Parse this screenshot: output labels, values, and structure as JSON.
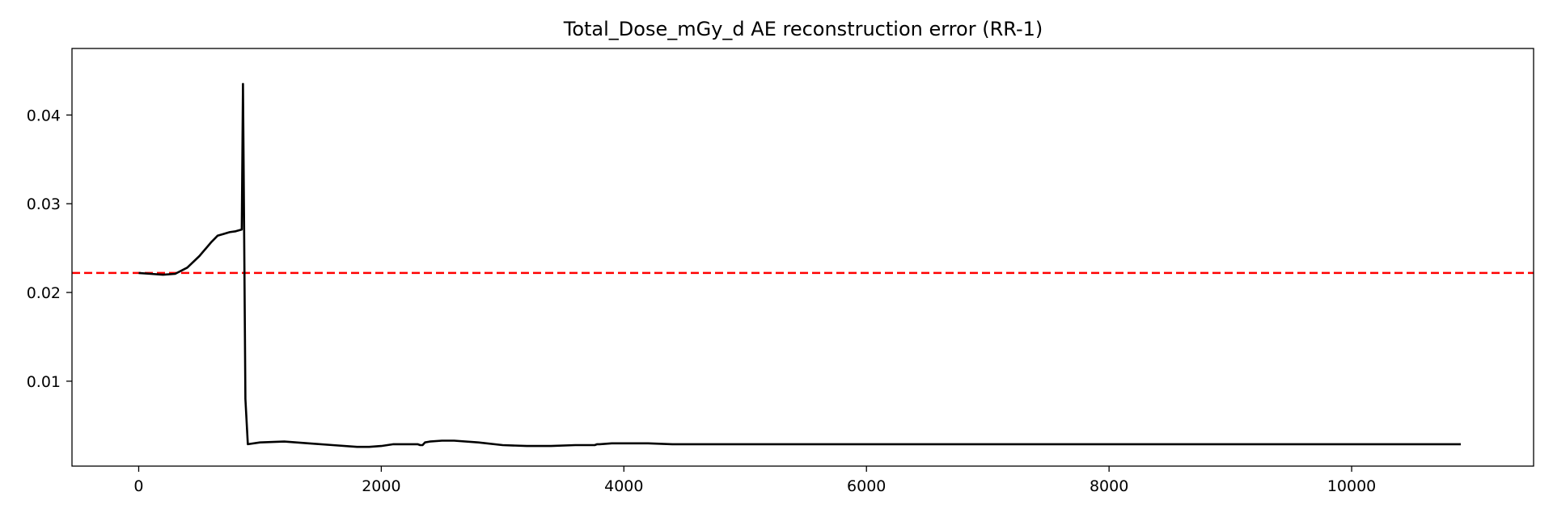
{
  "chart_data": {
    "type": "line",
    "title": "Total_Dose_mGy_d AE reconstruction error (RR-1)",
    "xlabel": "",
    "ylabel": "",
    "xlim": [
      -550,
      11500
    ],
    "ylim": [
      0.00043,
      0.0475
    ],
    "x_ticks": [
      0,
      2000,
      4000,
      6000,
      8000,
      10000
    ],
    "x_tick_labels": [
      "0",
      "2000",
      "4000",
      "6000",
      "8000",
      "10000"
    ],
    "y_ticks": [
      0.01,
      0.02,
      0.03,
      0.04
    ],
    "y_tick_labels": [
      "0.01",
      "0.02",
      "0.03",
      "0.04"
    ],
    "grid": false,
    "threshold": {
      "value": 0.0222,
      "color": "#ff0000",
      "style": "dashed"
    },
    "series": [
      {
        "color": "#000000",
        "x": [
          0,
          100,
          200,
          300,
          400,
          500,
          600,
          650,
          700,
          750,
          800,
          850,
          860,
          870,
          880,
          900,
          1000,
          1200,
          1400,
          1600,
          1800,
          1900,
          2000,
          2100,
          2200,
          2300,
          2320,
          2340,
          2360,
          2400,
          2500,
          2600,
          2800,
          3000,
          3200,
          3400,
          3600,
          3700,
          3740,
          3760,
          3780,
          3800,
          3900,
          4000,
          4200,
          4400,
          4600,
          5000,
          6000,
          7000,
          8000,
          9000,
          10000,
          10900
        ],
        "y": [
          0.0222,
          0.0221,
          0.022,
          0.0221,
          0.0228,
          0.0241,
          0.0257,
          0.0264,
          0.0266,
          0.0268,
          0.0269,
          0.0271,
          0.0435,
          0.026,
          0.008,
          0.0029,
          0.0031,
          0.0032,
          0.003,
          0.0028,
          0.0026,
          0.0026,
          0.0027,
          0.0029,
          0.0029,
          0.0029,
          0.0028,
          0.0028,
          0.0031,
          0.0032,
          0.0033,
          0.0033,
          0.0031,
          0.0028,
          0.0027,
          0.0027,
          0.0028,
          0.0028,
          0.0028,
          0.0028,
          0.0029,
          0.0029,
          0.003,
          0.003,
          0.003,
          0.0029,
          0.0029,
          0.0029,
          0.0029,
          0.0029,
          0.0029,
          0.0029,
          0.0029,
          0.0029
        ]
      }
    ]
  }
}
